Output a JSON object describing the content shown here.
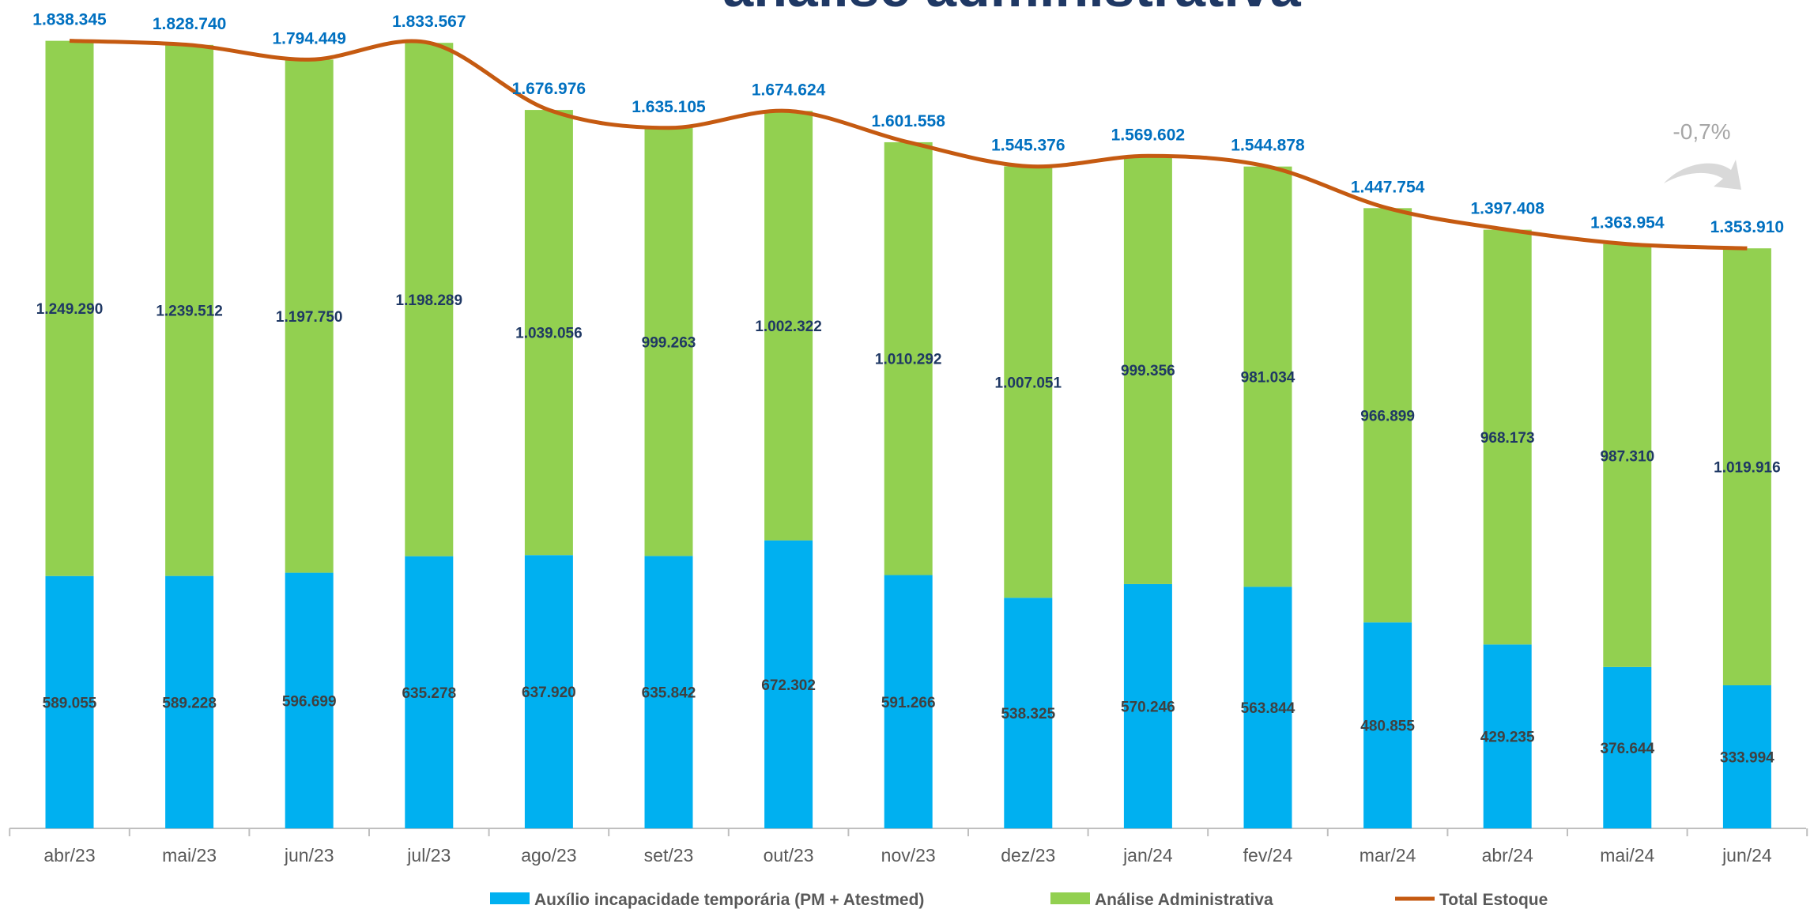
{
  "chart_data": {
    "type": "stacked-bar-line",
    "title": "análise administrativa",
    "annotation": "-0,7%",
    "categories": [
      "abr/23",
      "mai/23",
      "jun/23",
      "jul/23",
      "ago/23",
      "set/23",
      "out/23",
      "nov/23",
      "dez/23",
      "jan/24",
      "fev/24",
      "mar/24",
      "abr/24",
      "mai/24",
      "jun/24"
    ],
    "series": [
      {
        "name": "Auxílio incapacidade temporária (PM + Atestmed)",
        "color": "#00b0f0",
        "kind": "bar",
        "values": [
          589055,
          589228,
          596699,
          635278,
          637920,
          635842,
          672302,
          591266,
          538325,
          570246,
          563844,
          480855,
          429235,
          376644,
          333994
        ],
        "value_labels": [
          "589.055",
          "589.228",
          "596.699",
          "635.278",
          "637.920",
          "635.842",
          "672.302",
          "591.266",
          "538.325",
          "570.246",
          "563.844",
          "480.855",
          "429.235",
          "376.644",
          "333.994"
        ]
      },
      {
        "name": "Análise Administrativa",
        "color": "#92d050",
        "kind": "bar",
        "values": [
          1249290,
          1239512,
          1197750,
          1198289,
          1039056,
          999263,
          1002322,
          1010292,
          1007051,
          999356,
          981034,
          966899,
          968173,
          987310,
          1019916
        ],
        "value_labels": [
          "1.249.290",
          "1.239.512",
          "1.197.750",
          "1.198.289",
          "1.039.056",
          "999.263",
          "1.002.322",
          "1.010.292",
          "1.007.051",
          "999.356",
          "981.034",
          "966.899",
          "968.173",
          "987.310",
          "1.019.916"
        ]
      },
      {
        "name": "Total Estoque",
        "color": "#c55a11",
        "kind": "line",
        "values": [
          1838345,
          1828740,
          1794449,
          1833567,
          1676976,
          1635105,
          1674624,
          1601558,
          1545376,
          1569602,
          1544878,
          1447754,
          1397408,
          1363954,
          1353910
        ],
        "value_labels": [
          "1.838.345",
          "1.828.740",
          "1.794.449",
          "1.833.567",
          "1.676.976",
          "1.635.105",
          "1.674.624",
          "1.601.558",
          "1.545.376",
          "1.569.602",
          "1.544.878",
          "1.447.754",
          "1.397.408",
          "1.363.954",
          "1.353.910"
        ]
      }
    ]
  }
}
